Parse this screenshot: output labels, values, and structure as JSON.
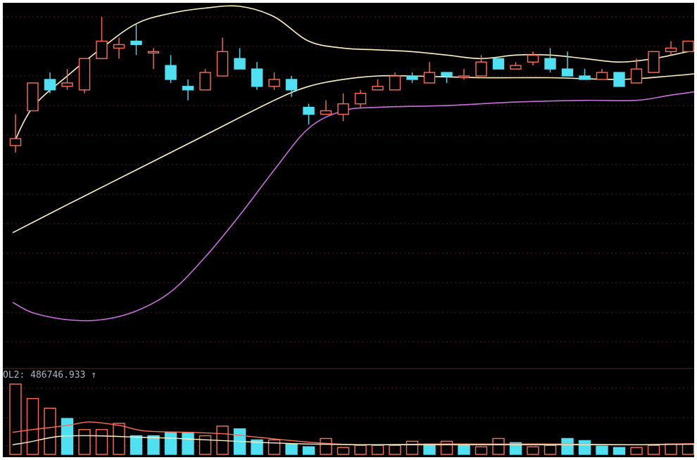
{
  "chart_data": [
    {
      "type": "candlestick",
      "panel": "price",
      "grid": true,
      "ylim": [
        0,
        100
      ],
      "colors": {
        "up": "#ff6d55",
        "down": "#4fe0f2",
        "background": "#000000"
      },
      "candles": [
        {
          "o": 60,
          "h": 69,
          "l": 58,
          "c": 62
        },
        {
          "o": 70,
          "h": 78,
          "l": 70,
          "c": 78
        },
        {
          "o": 79,
          "h": 81,
          "l": 75,
          "c": 76
        },
        {
          "o": 77,
          "h": 82,
          "l": 76,
          "c": 78
        },
        {
          "o": 76,
          "h": 85,
          "l": 75,
          "c": 85
        },
        {
          "o": 85,
          "h": 97,
          "l": 85,
          "c": 90
        },
        {
          "o": 88,
          "h": 91,
          "l": 85,
          "c": 89
        },
        {
          "o": 90,
          "h": 95,
          "l": 86,
          "c": 89
        },
        {
          "o": 87,
          "h": 88,
          "l": 82,
          "c": 87
        },
        {
          "o": 83,
          "h": 86,
          "l": 78,
          "c": 79
        },
        {
          "o": 77,
          "h": 79,
          "l": 73,
          "c": 76
        },
        {
          "o": 76,
          "h": 82,
          "l": 76,
          "c": 81
        },
        {
          "o": 80,
          "h": 91,
          "l": 80,
          "c": 87
        },
        {
          "o": 85,
          "h": 88,
          "l": 82,
          "c": 82
        },
        {
          "o": 82,
          "h": 84,
          "l": 76,
          "c": 77
        },
        {
          "o": 77,
          "h": 81,
          "l": 76,
          "c": 79
        },
        {
          "o": 79,
          "h": 80,
          "l": 74,
          "c": 76
        },
        {
          "o": 71,
          "h": 72,
          "l": 66,
          "c": 69
        },
        {
          "o": 69,
          "h": 73,
          "l": 69,
          "c": 70
        },
        {
          "o": 69,
          "h": 75,
          "l": 67,
          "c": 72
        },
        {
          "o": 72,
          "h": 76,
          "l": 71,
          "c": 75
        },
        {
          "o": 76,
          "h": 79,
          "l": 76,
          "c": 77
        },
        {
          "o": 76,
          "h": 81,
          "l": 76,
          "c": 80
        },
        {
          "o": 80,
          "h": 81,
          "l": 78,
          "c": 79
        },
        {
          "o": 78,
          "h": 84,
          "l": 78,
          "c": 81
        },
        {
          "o": 81,
          "h": 81,
          "l": 78,
          "c": 80
        },
        {
          "o": 80,
          "h": 82,
          "l": 79,
          "c": 80
        },
        {
          "o": 80,
          "h": 86,
          "l": 80,
          "c": 84
        },
        {
          "o": 85,
          "h": 85,
          "l": 82,
          "c": 82
        },
        {
          "o": 82,
          "h": 84,
          "l": 82,
          "c": 83
        },
        {
          "o": 84,
          "h": 87,
          "l": 83,
          "c": 86
        },
        {
          "o": 85,
          "h": 88,
          "l": 81,
          "c": 82
        },
        {
          "o": 82,
          "h": 87,
          "l": 80,
          "c": 80
        },
        {
          "o": 80,
          "h": 82,
          "l": 79,
          "c": 79
        },
        {
          "o": 79,
          "h": 82,
          "l": 79,
          "c": 81
        },
        {
          "o": 81,
          "h": 81,
          "l": 77,
          "c": 77
        },
        {
          "o": 78,
          "h": 85,
          "l": 78,
          "c": 82
        },
        {
          "o": 81,
          "h": 87,
          "l": 81,
          "c": 87
        },
        {
          "o": 87,
          "h": 90,
          "l": 86,
          "c": 88
        },
        {
          "o": 87,
          "h": 90,
          "l": 87,
          "c": 90
        }
      ],
      "lines": [
        {
          "color": "#fff2c4",
          "points": [
            [
              -0.16,
              60
            ],
            [
              1,
              71
            ],
            [
              3,
              80
            ],
            [
              5,
              88
            ],
            [
              7,
              95
            ],
            [
              9,
              98
            ],
            [
              11,
              99.5
            ],
            [
              13,
              100
            ],
            [
              15,
              97
            ],
            [
              17,
              90
            ],
            [
              19,
              88
            ],
            [
              21,
              87.5
            ],
            [
              23,
              87
            ],
            [
              25,
              86
            ],
            [
              27,
              85
            ],
            [
              29,
              86
            ],
            [
              31,
              86
            ],
            [
              33,
              85
            ],
            [
              35,
              84
            ],
            [
              37,
              85
            ],
            [
              39,
              87
            ],
            [
              40.16,
              88
            ]
          ]
        },
        {
          "color": "#fff2c4",
          "points": [
            [
              -0.16,
              35
            ],
            [
              3,
              43
            ],
            [
              7,
              53
            ],
            [
              11,
              63
            ],
            [
              15,
              73
            ],
            [
              17,
              77
            ],
            [
              19,
              79
            ],
            [
              21,
              80
            ],
            [
              23,
              80
            ],
            [
              27,
              79.5
            ],
            [
              31,
              79.5
            ],
            [
              35,
              79
            ],
            [
              38,
              80
            ],
            [
              40.16,
              81
            ]
          ]
        },
        {
          "color": "#c86fdc",
          "points": [
            [
              -0.16,
              15
            ],
            [
              1,
              12
            ],
            [
              3,
              10
            ],
            [
              5,
              10
            ],
            [
              7,
              12.5
            ],
            [
              9,
              18
            ],
            [
              11,
              28
            ],
            [
              13,
              40
            ],
            [
              15,
              53
            ],
            [
              17,
              65
            ],
            [
              19,
              70
            ],
            [
              21,
              71
            ],
            [
              25,
              71.5
            ],
            [
              29,
              72.5
            ],
            [
              33,
              73
            ],
            [
              36,
              73
            ],
            [
              38,
              74.5
            ],
            [
              40.16,
              76
            ]
          ]
        }
      ]
    },
    {
      "type": "bar",
      "panel": "volume",
      "label": "OL2: 486746.933 ↑",
      "grid": true,
      "ylim": [
        0,
        100
      ],
      "values": [
        102,
        81,
        67,
        52,
        36,
        36,
        45,
        27,
        27,
        32,
        32,
        27,
        41,
        37,
        21,
        21,
        15,
        11,
        23,
        10,
        13,
        13,
        13,
        19,
        15,
        19,
        13,
        11,
        23,
        17,
        11,
        13,
        23,
        20,
        12,
        10,
        10,
        13,
        15,
        15
      ],
      "up": [
        true,
        true,
        true,
        false,
        true,
        true,
        true,
        false,
        false,
        false,
        false,
        true,
        true,
        false,
        false,
        true,
        false,
        false,
        true,
        true,
        true,
        true,
        true,
        true,
        false,
        true,
        false,
        true,
        true,
        false,
        true,
        true,
        false,
        false,
        false,
        false,
        true,
        true,
        true,
        true
      ],
      "lines": [
        {
          "color": "#ff6d55",
          "points": [
            [
              -0.16,
              32
            ],
            [
              1,
              36
            ],
            [
              3,
              42
            ],
            [
              4.3,
              47
            ],
            [
              6,
              42
            ],
            [
              7.5,
              34
            ],
            [
              10,
              32
            ],
            [
              12,
              30
            ],
            [
              14,
              25
            ],
            [
              16,
              20
            ],
            [
              18,
              16
            ],
            [
              20,
              14
            ],
            [
              24,
              15
            ],
            [
              28,
              15
            ],
            [
              32,
              15
            ],
            [
              36,
              14
            ],
            [
              38,
              15
            ],
            [
              40.16,
              16
            ]
          ]
        },
        {
          "color": "#fff2c4",
          "points": [
            [
              -0.16,
              14
            ],
            [
              0.8,
              18
            ],
            [
              2.5,
              26
            ],
            [
              4.5,
              27
            ],
            [
              7,
              25
            ],
            [
              9.5,
              23
            ],
            [
              12,
              20
            ],
            [
              14.5,
              17
            ],
            [
              17,
              15
            ],
            [
              20,
              14
            ],
            [
              24,
              14
            ],
            [
              28,
              14
            ],
            [
              32,
              14
            ],
            [
              36,
              14
            ],
            [
              40.16,
              15
            ]
          ]
        }
      ]
    }
  ]
}
